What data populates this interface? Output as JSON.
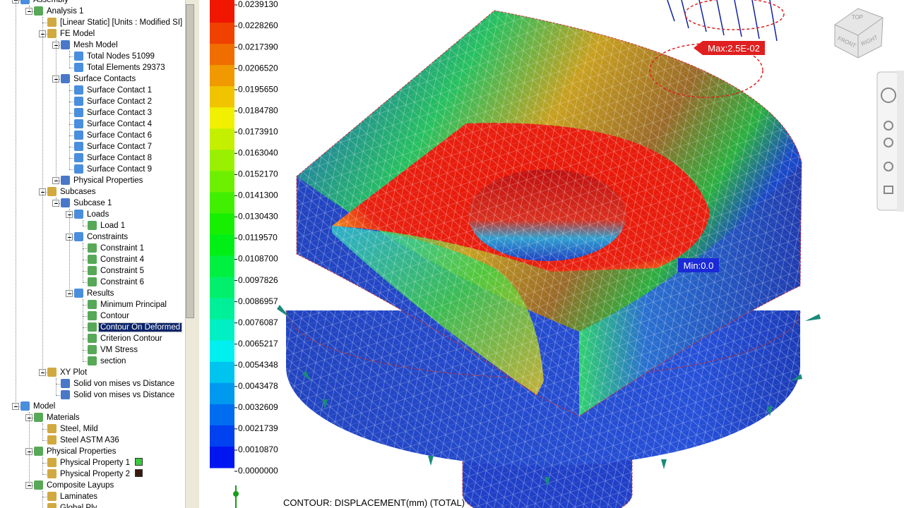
{
  "tree": [
    {
      "label": "Assembly",
      "children": [
        {
          "label": "Analysis 1",
          "children": [
            {
              "label": "[Linear Static] [Units : Modified SI]"
            },
            {
              "label": "FE Model",
              "children": [
                {
                  "label": "Mesh Model",
                  "children": [
                    {
                      "label": "Total Nodes 51099"
                    },
                    {
                      "label": "Total Elements 29373"
                    }
                  ]
                },
                {
                  "label": "Surface Contacts",
                  "children": [
                    {
                      "label": "Surface Contact 1"
                    },
                    {
                      "label": "Surface Contact 2"
                    },
                    {
                      "label": "Surface Contact 3"
                    },
                    {
                      "label": "Surface Contact 4"
                    },
                    {
                      "label": "Surface Contact 6"
                    },
                    {
                      "label": "Surface Contact 7"
                    },
                    {
                      "label": "Surface Contact 8"
                    },
                    {
                      "label": "Surface Contact 9"
                    }
                  ]
                },
                {
                  "label": "Physical Properties",
                  "children": []
                }
              ]
            },
            {
              "label": "Subcases",
              "children": [
                {
                  "label": "Subcase 1",
                  "children": [
                    {
                      "label": "Loads",
                      "children": [
                        {
                          "label": "Load 1"
                        }
                      ]
                    },
                    {
                      "label": "Constraints",
                      "children": [
                        {
                          "label": "Constraint 1"
                        },
                        {
                          "label": "Constraint 4"
                        },
                        {
                          "label": "Constraint 5"
                        },
                        {
                          "label": "Constraint 6"
                        }
                      ]
                    },
                    {
                      "label": "Results",
                      "children": [
                        {
                          "label": "Minimum Principal"
                        },
                        {
                          "label": "Contour"
                        },
                        {
                          "label": "Contour On Deformed",
                          "selected": true
                        },
                        {
                          "label": "Criterion Contour"
                        },
                        {
                          "label": "VM Stress"
                        },
                        {
                          "label": "section"
                        }
                      ]
                    }
                  ]
                }
              ]
            },
            {
              "label": "XY Plot",
              "children": [
                {
                  "label": "Solid von mises  vs Distance"
                },
                {
                  "label": "Solid von mises  vs Distance"
                }
              ]
            }
          ]
        }
      ]
    },
    {
      "label": "Model",
      "children": [
        {
          "label": "Materials",
          "children": [
            {
              "label": "Steel, Mild"
            },
            {
              "label": "Steel ASTM A36"
            }
          ]
        },
        {
          "label": "Physical Properties",
          "children": [
            {
              "label": "Physical Property 1",
              "swatch": "#3cc83c"
            },
            {
              "label": "Physical Property 2",
              "swatch": "#3a1a10"
            }
          ]
        },
        {
          "label": "Composite Layups",
          "children": [
            {
              "label": "Laminates"
            },
            {
              "label": "Global Ply"
            }
          ]
        }
      ]
    }
  ],
  "legend": {
    "labels": [
      "0.0239130",
      "0.0228260",
      "0.0217390",
      "0.0206520",
      "0.0195650",
      "0.0184780",
      "0.0173910",
      "0.0163040",
      "0.0152170",
      "0.0141300",
      "0.0130430",
      "0.0119570",
      "0.0108700",
      "0.0097826",
      "0.0086957",
      "0.0076087",
      "0.0065217",
      "0.0054348",
      "0.0043478",
      "0.0032609",
      "0.0021739",
      "0.0010870",
      "0.0000000"
    ]
  },
  "viewport": {
    "caption": "CONTOUR: DISPLACEMENT(mm) (TOTAL)",
    "max_label": "Max:2.5E-02",
    "min_label": "Min:0.0",
    "cube": {
      "top": "TOP",
      "front": "FRONT",
      "right": "RIGHT"
    }
  }
}
